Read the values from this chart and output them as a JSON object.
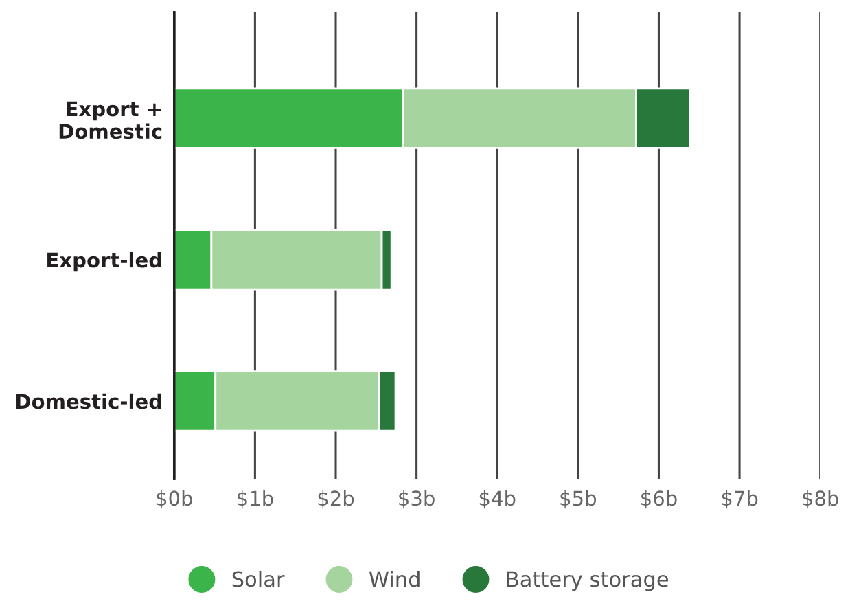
{
  "chart_data": {
    "type": "bar",
    "orientation": "horizontal",
    "stacked": true,
    "categories": [
      "Export +\nDomestic",
      "Export-led",
      "Domestic-led"
    ],
    "series": [
      {
        "name": "Solar",
        "color": "#3bb54a",
        "values": [
          2.83,
          0.46,
          0.51
        ]
      },
      {
        "name": "Wind",
        "color": "#a5d49e",
        "values": [
          2.89,
          2.11,
          2.03
        ]
      },
      {
        "name": "Battery storage",
        "color": "#28773b",
        "values": [
          0.67,
          0.12,
          0.2
        ]
      }
    ],
    "xlim": [
      0,
      8
    ],
    "xticks": [
      {
        "value": 0,
        "label": "$0b"
      },
      {
        "value": 1,
        "label": "$1b"
      },
      {
        "value": 2,
        "label": "$2b"
      },
      {
        "value": 3,
        "label": "$3b"
      },
      {
        "value": 4,
        "label": "$4b"
      },
      {
        "value": 5,
        "label": "$5b"
      },
      {
        "value": 6,
        "label": "$6b"
      },
      {
        "value": 7,
        "label": "$7b"
      },
      {
        "value": 8,
        "label": "$8b"
      }
    ],
    "grid": "x",
    "legend": "bottom"
  }
}
